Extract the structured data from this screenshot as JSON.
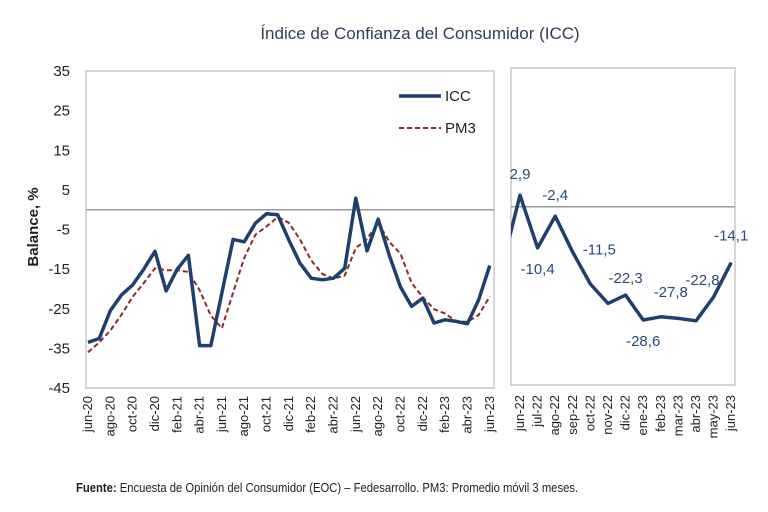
{
  "chart_data": [
    {
      "type": "line",
      "panel": "left",
      "title": "Índice de Confianza del Consumidor (ICC)",
      "ylabel": "Balance, %",
      "xlabel": "",
      "ylim": [
        -45,
        35
      ],
      "yticks": [
        35,
        25,
        15,
        5,
        -5,
        -15,
        -25,
        -35,
        -45
      ],
      "reference_line": 0,
      "grid": false,
      "legend": {
        "placement": "top-right",
        "entries": [
          "ICC",
          "PM3"
        ]
      },
      "x": [
        "jun-20",
        "jul-20",
        "ago-20",
        "sep-20",
        "oct-20",
        "nov-20",
        "dic-20",
        "ene-21",
        "feb-21",
        "mar-21",
        "abr-21",
        "may-21",
        "jun-21",
        "jul-21",
        "ago-21",
        "sep-21",
        "oct-21",
        "nov-21",
        "dic-21",
        "ene-22",
        "feb-22",
        "mar-22",
        "abr-22",
        "may-22",
        "jun-22",
        "jul-22",
        "ago-22",
        "sep-22",
        "oct-22",
        "nov-22",
        "dic-22",
        "ene-23",
        "feb-23",
        "mar-23",
        "abr-23",
        "may-23",
        "jun-23"
      ],
      "xtick_labels": [
        "jun-20",
        "ago-20",
        "oct-20",
        "dic-20",
        "feb-21",
        "abr-21",
        "jun-21",
        "ago-21",
        "oct-21",
        "dic-21",
        "feb-22",
        "abr-22",
        "jun-22",
        "ago-22",
        "oct-22",
        "dic-22",
        "feb-23",
        "abr-23",
        "jun-23"
      ],
      "series": [
        {
          "name": "ICC",
          "style": "solid",
          "color": "#1f3f6e",
          "values": [
            -33.5,
            -32.5,
            -25.5,
            -21.5,
            -19.0,
            -15.0,
            -10.5,
            -20.5,
            -15.0,
            -11.5,
            -34.3,
            -34.3,
            -21.0,
            -7.5,
            -8.1,
            -3.4,
            -1.0,
            -1.3,
            -7.7,
            -13.5,
            -17.3,
            -17.7,
            -17.3,
            -14.8,
            2.9,
            -10.4,
            -2.4,
            -11.5,
            -19.5,
            -24.4,
            -22.3,
            -28.6,
            -27.8,
            -28.2,
            -28.8,
            -22.8,
            -14.1
          ]
        },
        {
          "name": "PM3",
          "style": "dashed",
          "color": "#8b2a2a",
          "values": [
            -36.0,
            -33.5,
            -30.5,
            -26.5,
            -22.0,
            -18.5,
            -14.8,
            -15.3,
            -15.3,
            -15.7,
            -20.3,
            -26.7,
            -29.9,
            -20.9,
            -12.2,
            -6.3,
            -4.2,
            -1.9,
            -3.3,
            -7.5,
            -12.8,
            -16.2,
            -17.4,
            -16.6,
            -9.7,
            -7.4,
            -3.3,
            -8.1,
            -11.1,
            -18.5,
            -22.1,
            -25.1,
            -26.2,
            -28.2,
            -28.3,
            -26.6,
            -21.9
          ]
        }
      ]
    },
    {
      "type": "line",
      "panel": "right",
      "ylim": [
        -45,
        35
      ],
      "reference_line": 0,
      "x": [
        "may-22",
        "jun-22",
        "jul-22",
        "ago-22",
        "sep-22",
        "oct-22",
        "nov-22",
        "dic-22",
        "ene-23",
        "feb-23",
        "mar-23",
        "abr-23",
        "may-23",
        "jun-23"
      ],
      "xtick_labels": [
        "jun-22",
        "jul-22",
        "ago-22",
        "sep-22",
        "oct-22",
        "nov-22",
        "dic-22",
        "ene-23",
        "feb-23",
        "mar-23",
        "abr-23",
        "may-23",
        "jun-23"
      ],
      "series": [
        {
          "name": "ICC",
          "style": "solid",
          "color": "#1f3f6e",
          "values": [
            -14.8,
            2.9,
            -10.4,
            -2.4,
            -11.5,
            -19.5,
            -24.4,
            -22.3,
            -28.6,
            -27.8,
            -28.2,
            -28.8,
            -22.8,
            -14.1
          ]
        }
      ],
      "data_labels": [
        {
          "x": "jun-22",
          "text": "2,9",
          "pos": "above"
        },
        {
          "x": "jul-22",
          "text": "-10,4",
          "pos": "below"
        },
        {
          "x": "ago-22",
          "text": "-2,4",
          "pos": "above"
        },
        {
          "x": "sep-22",
          "text": "-11,5",
          "pos": "right"
        },
        {
          "x": "dic-22",
          "text": "-22,3",
          "pos": "above"
        },
        {
          "x": "feb-23",
          "text": "-27,8",
          "pos": "above"
        },
        {
          "x": "ene-23",
          "text": "-28,6",
          "pos": "below"
        },
        {
          "x": "may-23",
          "text": "-22,8",
          "pos": "left"
        },
        {
          "x": "jun-23",
          "text": "-14,1",
          "pos": "above"
        }
      ]
    }
  ],
  "footer": {
    "source_label": "Fuente:",
    "source_text": " Encuesta de Opinión del Consumidor (EOC) – Fedesarrollo. PM3: Promedio móvil 3 meses."
  },
  "colors": {
    "icc": "#1f3f6e",
    "pm3": "#8b2a2a",
    "data_label": "#2a4a7a",
    "frame": "#c8c8c8",
    "zero_line": "#9a9a9a"
  }
}
